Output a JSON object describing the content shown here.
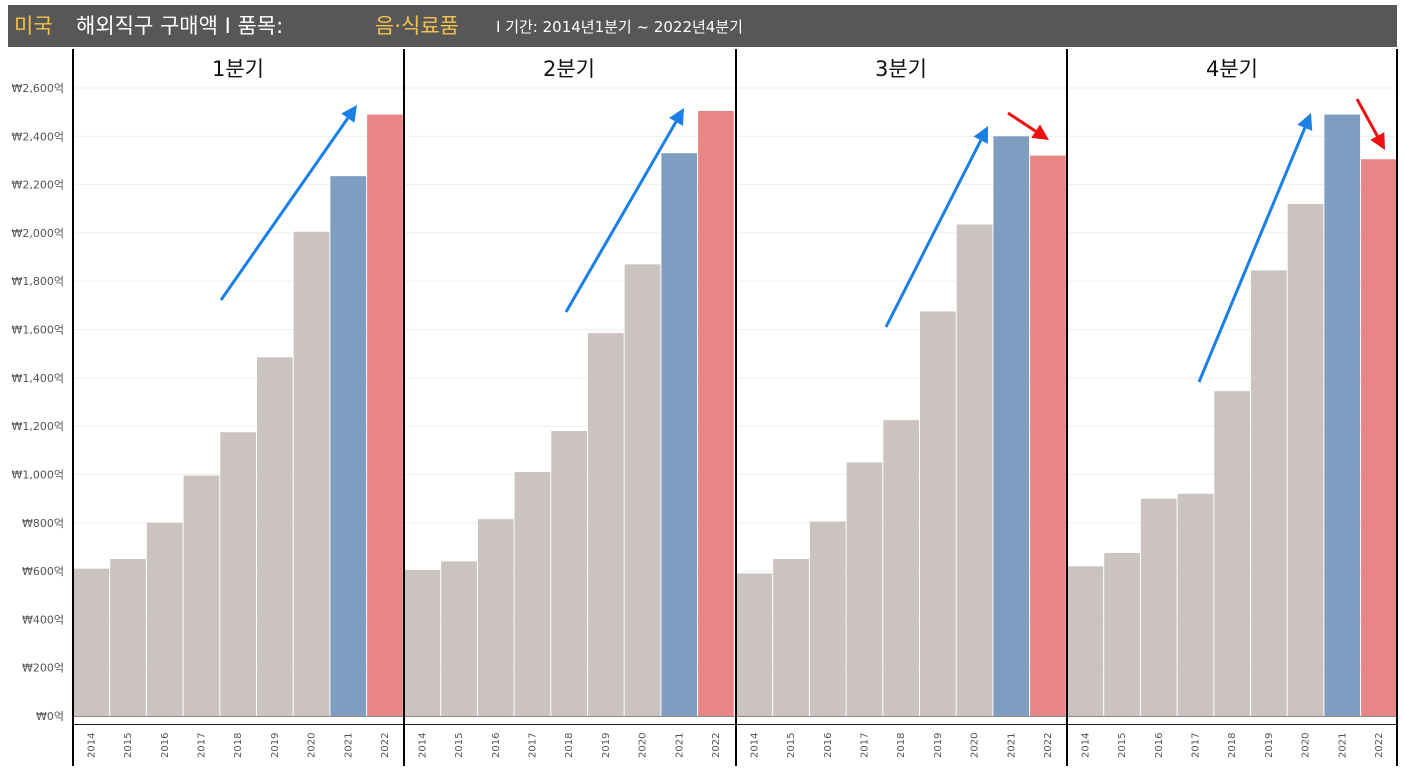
{
  "title": {
    "country": "미국",
    "main": "해외직구 구매액 I 품목:",
    "category": "음·식료품",
    "period": "I 기간: 2014년1분기 ~ 2022년4분기"
  },
  "colors": {
    "title_bg": "#575757",
    "title_highlight": "#f2c14e",
    "bar_default": "#cbc3c0",
    "bar_2021": "#7f9dc0",
    "bar_2022": "#e88585",
    "arrow_up": "#1a7fe6",
    "arrow_down": "#ee1111"
  },
  "chart_data": {
    "type": "bar",
    "title": "미국 해외직구 구매액 I 품목: 음·식료품 I 기간: 2014년1분기 ~ 2022년4분기",
    "categories": [
      "2014",
      "2015",
      "2016",
      "2017",
      "2018",
      "2019",
      "2020",
      "2021",
      "2022"
    ],
    "ylim": [
      0,
      2650
    ],
    "yticks": [
      0,
      200,
      400,
      600,
      800,
      1000,
      1200,
      1400,
      1600,
      1800,
      2000,
      2200,
      2400,
      2600
    ],
    "ytick_labels": [
      "₩0억",
      "₩200억",
      "₩400억",
      "₩600억",
      "₩800억",
      "₩1,000억",
      "₩1,200억",
      "₩1,400억",
      "₩1,600억",
      "₩1,800억",
      "₩2,000억",
      "₩2,200억",
      "₩2,400억",
      "₩2,600억"
    ],
    "grid": true,
    "panels": [
      {
        "name": "1분기",
        "values": [
          610,
          650,
          800,
          995,
          1175,
          1485,
          2005,
          2235,
          2490
        ]
      },
      {
        "name": "2분기",
        "values": [
          605,
          640,
          815,
          1010,
          1180,
          1585,
          1870,
          2330,
          2505
        ]
      },
      {
        "name": "3분기",
        "values": [
          590,
          650,
          805,
          1050,
          1225,
          1675,
          2035,
          2400,
          2320
        ]
      },
      {
        "name": "4분기",
        "values": [
          620,
          675,
          900,
          920,
          1345,
          1845,
          2120,
          2490,
          2305
        ]
      }
    ]
  }
}
